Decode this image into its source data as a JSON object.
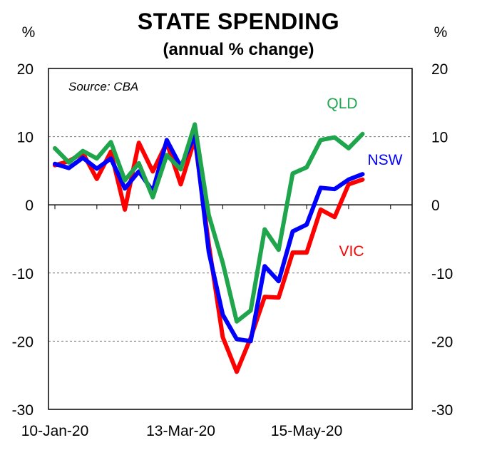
{
  "chart_data": {
    "type": "line",
    "title": "STATE SPENDING",
    "subtitle": "(annual % change)",
    "ylabel_left": "%",
    "ylabel_right": "%",
    "source": "Source: CBA",
    "ylim": [
      -30,
      20
    ],
    "yticks": [
      20,
      10,
      0,
      -10,
      -20,
      -30
    ],
    "gridlines": [
      10,
      -10,
      -20
    ],
    "x_count": 26,
    "xtick_labels": [
      {
        "index": 0,
        "label": "10-Jan-20"
      },
      {
        "index": 9,
        "label": "13-Mar-20"
      },
      {
        "index": 18,
        "label": "15-May-20"
      }
    ],
    "series": [
      {
        "name": "QLD",
        "color": "#1fa54c",
        "values": [
          8.3,
          6.2,
          7.9,
          6.8,
          9.2,
          3.6,
          6.1,
          1.1,
          7.3,
          5.2,
          11.8,
          -1.5,
          -8.5,
          -17.1,
          -15.5,
          -3.6,
          -6.6,
          4.6,
          5.5,
          9.5,
          9.9,
          8.3,
          10.4
        ]
      },
      {
        "name": "NSW",
        "color": "#0000ff",
        "values": [
          6.0,
          5.4,
          6.9,
          5.3,
          6.8,
          2.4,
          4.9,
          2.0,
          9.5,
          5.6,
          10.2,
          -6.9,
          -16.1,
          -19.7,
          -20.0,
          -9.0,
          -11.2,
          -3.9,
          -2.9,
          2.5,
          2.3,
          3.7,
          4.5
        ]
      },
      {
        "name": "VIC",
        "color": "#ff0000",
        "values": [
          5.8,
          6.4,
          7.6,
          3.8,
          7.8,
          -0.7,
          9.1,
          4.9,
          9.1,
          3.0,
          9.7,
          -5.8,
          -19.4,
          -24.5,
          -19.5,
          -13.5,
          -13.6,
          -7.0,
          -7.0,
          -0.7,
          -1.8,
          3.0,
          3.7
        ]
      }
    ]
  }
}
